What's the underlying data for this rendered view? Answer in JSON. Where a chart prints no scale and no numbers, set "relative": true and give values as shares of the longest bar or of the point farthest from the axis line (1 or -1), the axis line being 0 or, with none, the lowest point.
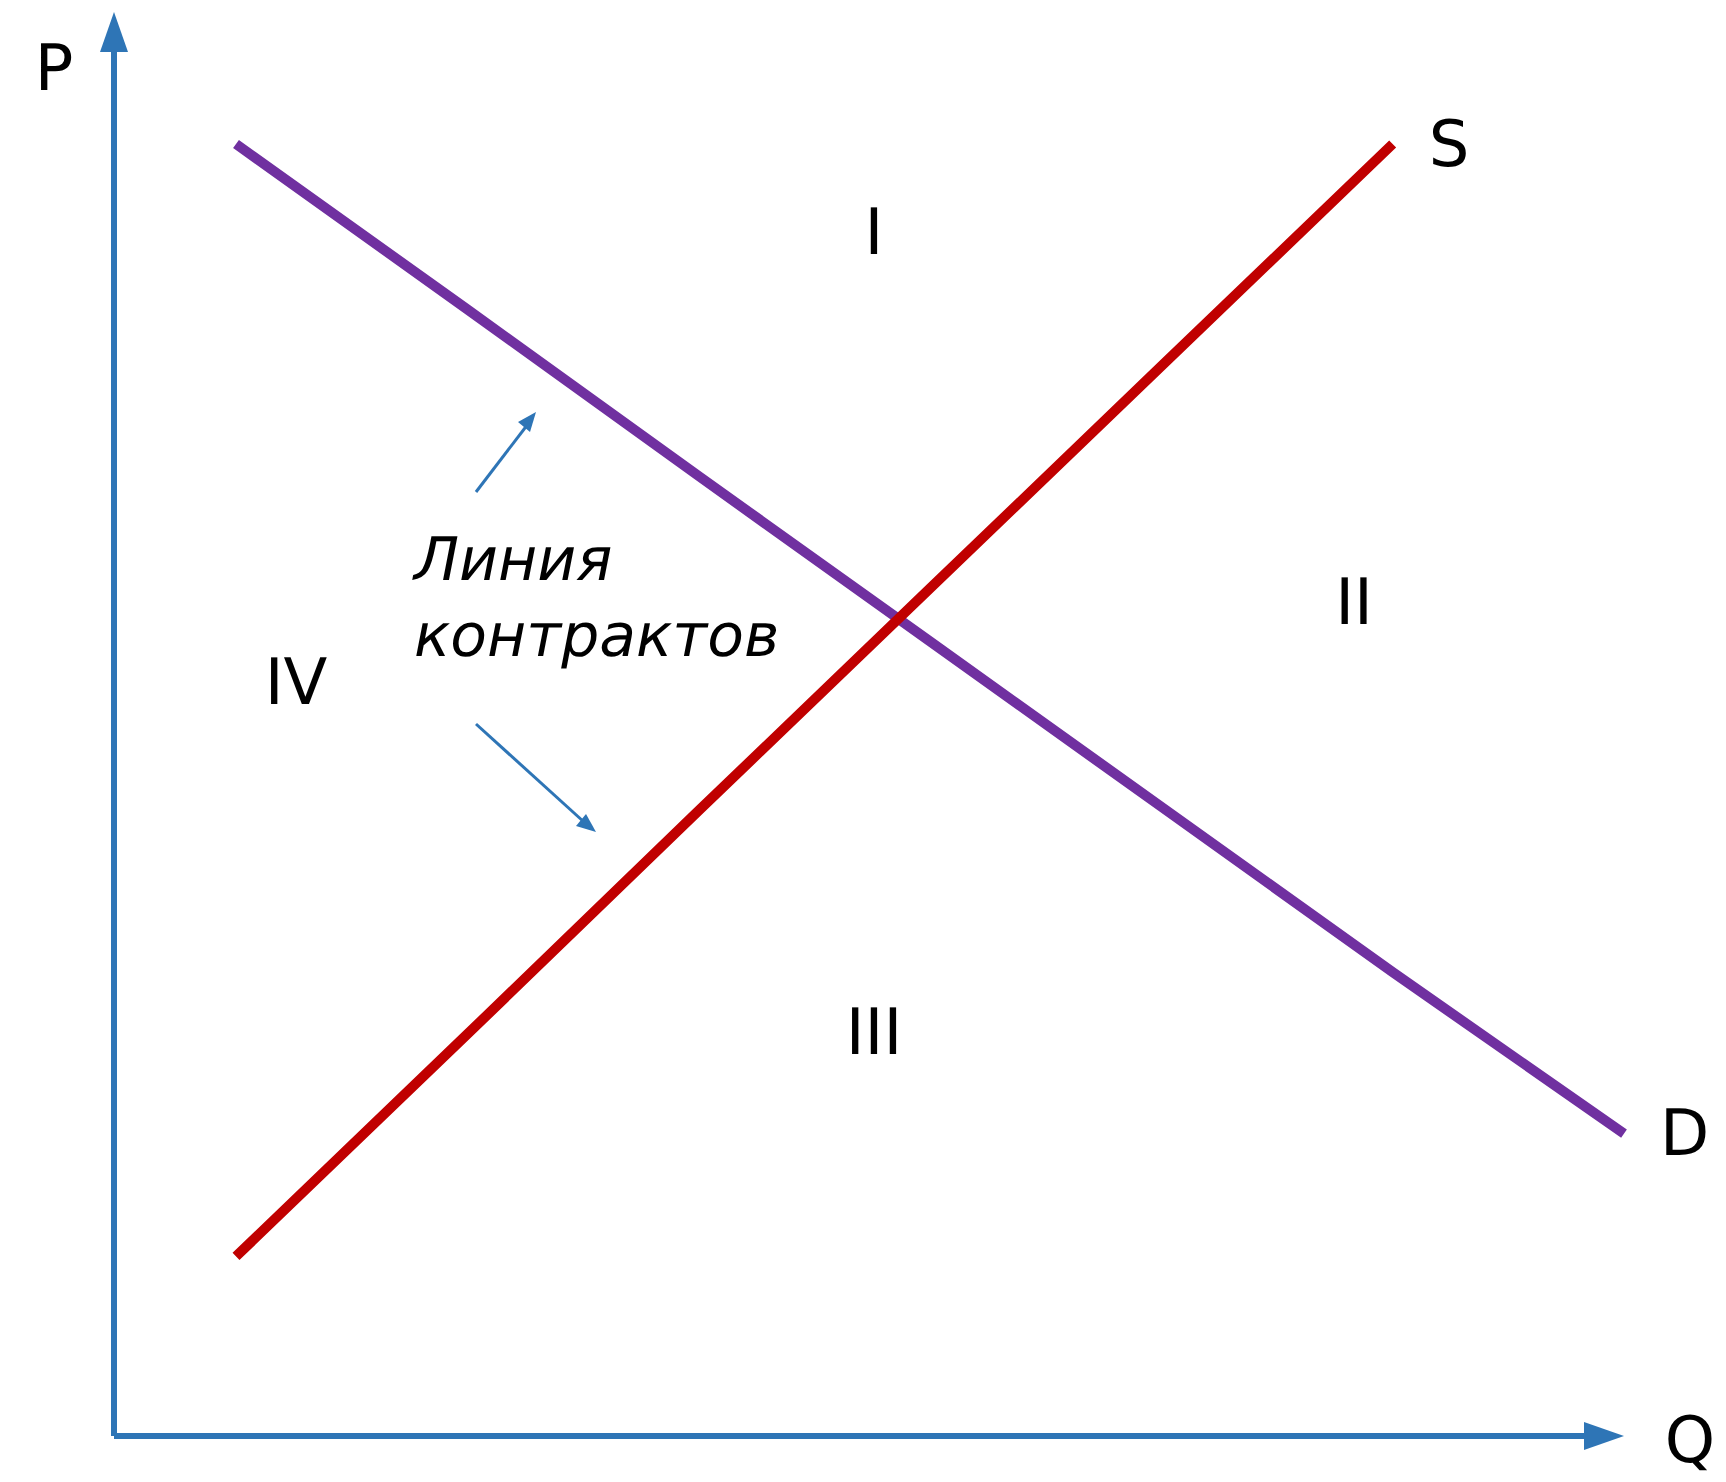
{
  "chart_data": {
    "type": "line",
    "relative": true,
    "xlabel": "Q",
    "ylabel": "P",
    "categories": [
      null,
      null,
      null,
      null,
      null,
      null,
      null
    ],
    "series": [
      {
        "name": "D",
        "color": "#7030a0",
        "values": [
          1.0,
          0.872,
          0.743,
          0.615,
          0.487,
          0.359,
          0.234
        ]
      },
      {
        "name": "S",
        "color": "#c00000",
        "values": [
          0.139,
          0.311,
          0.484,
          0.656,
          0.828,
          1.0,
          null
        ]
      }
    ],
    "annotations": [
      "I",
      "II",
      "III",
      "IV",
      "Линия контрактов"
    ]
  }
}
